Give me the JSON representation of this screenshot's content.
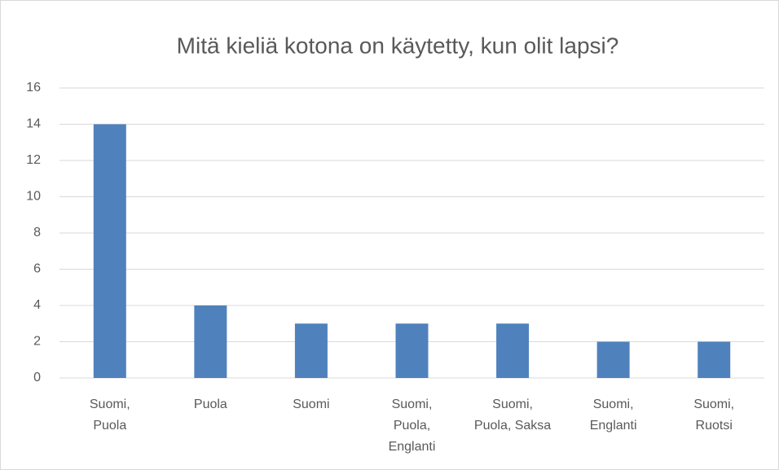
{
  "chart_data": {
    "type": "bar",
    "title": "Mitä kieliä kotona on käytetty, kun olit lapsi?",
    "categories": [
      "Suomi,\nPuola",
      "Puola",
      "Suomi",
      "Suomi,\nPuola,\nEnglanti",
      "Suomi,\nPuola, Saksa",
      "Suomi,\nEnglanti",
      "Suomi,\nRuotsi"
    ],
    "values": [
      14,
      4,
      3,
      3,
      3,
      2,
      2
    ],
    "color": "#4f81bd",
    "ylim": [
      0,
      16
    ],
    "yticks": [
      0,
      2,
      4,
      6,
      8,
      10,
      12,
      14,
      16
    ],
    "grid": true
  }
}
